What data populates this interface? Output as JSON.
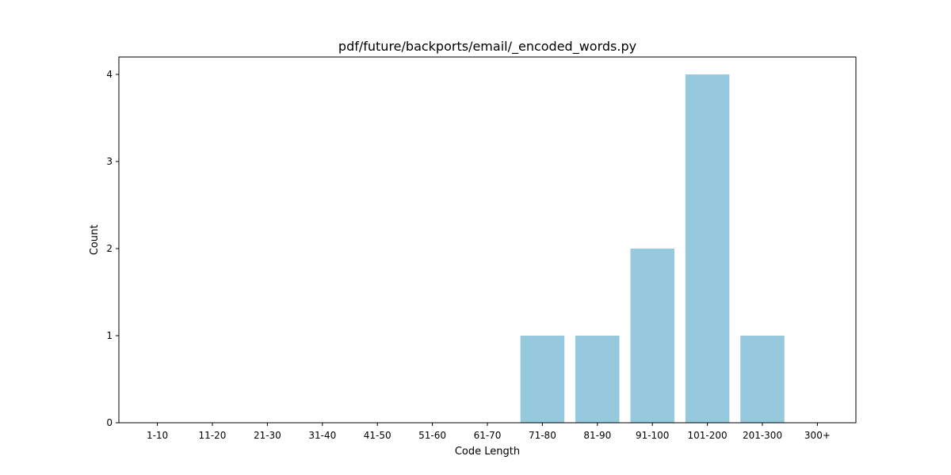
{
  "chart_data": {
    "type": "bar",
    "title": "pdf/future/backports/email/_encoded_words.py",
    "xlabel": "Code Length",
    "ylabel": "Count",
    "categories": [
      "1-10",
      "11-20",
      "21-30",
      "31-40",
      "41-50",
      "51-60",
      "61-70",
      "71-80",
      "81-90",
      "91-100",
      "101-200",
      "201-300",
      "300+"
    ],
    "values": [
      0,
      0,
      0,
      0,
      0,
      0,
      0,
      1,
      1,
      2,
      4,
      1,
      0
    ],
    "ylim": [
      0,
      4.2
    ],
    "yticks": [
      "0",
      "1",
      "2",
      "3",
      "4"
    ],
    "grid": false,
    "bar_color": "#96c9dd"
  }
}
